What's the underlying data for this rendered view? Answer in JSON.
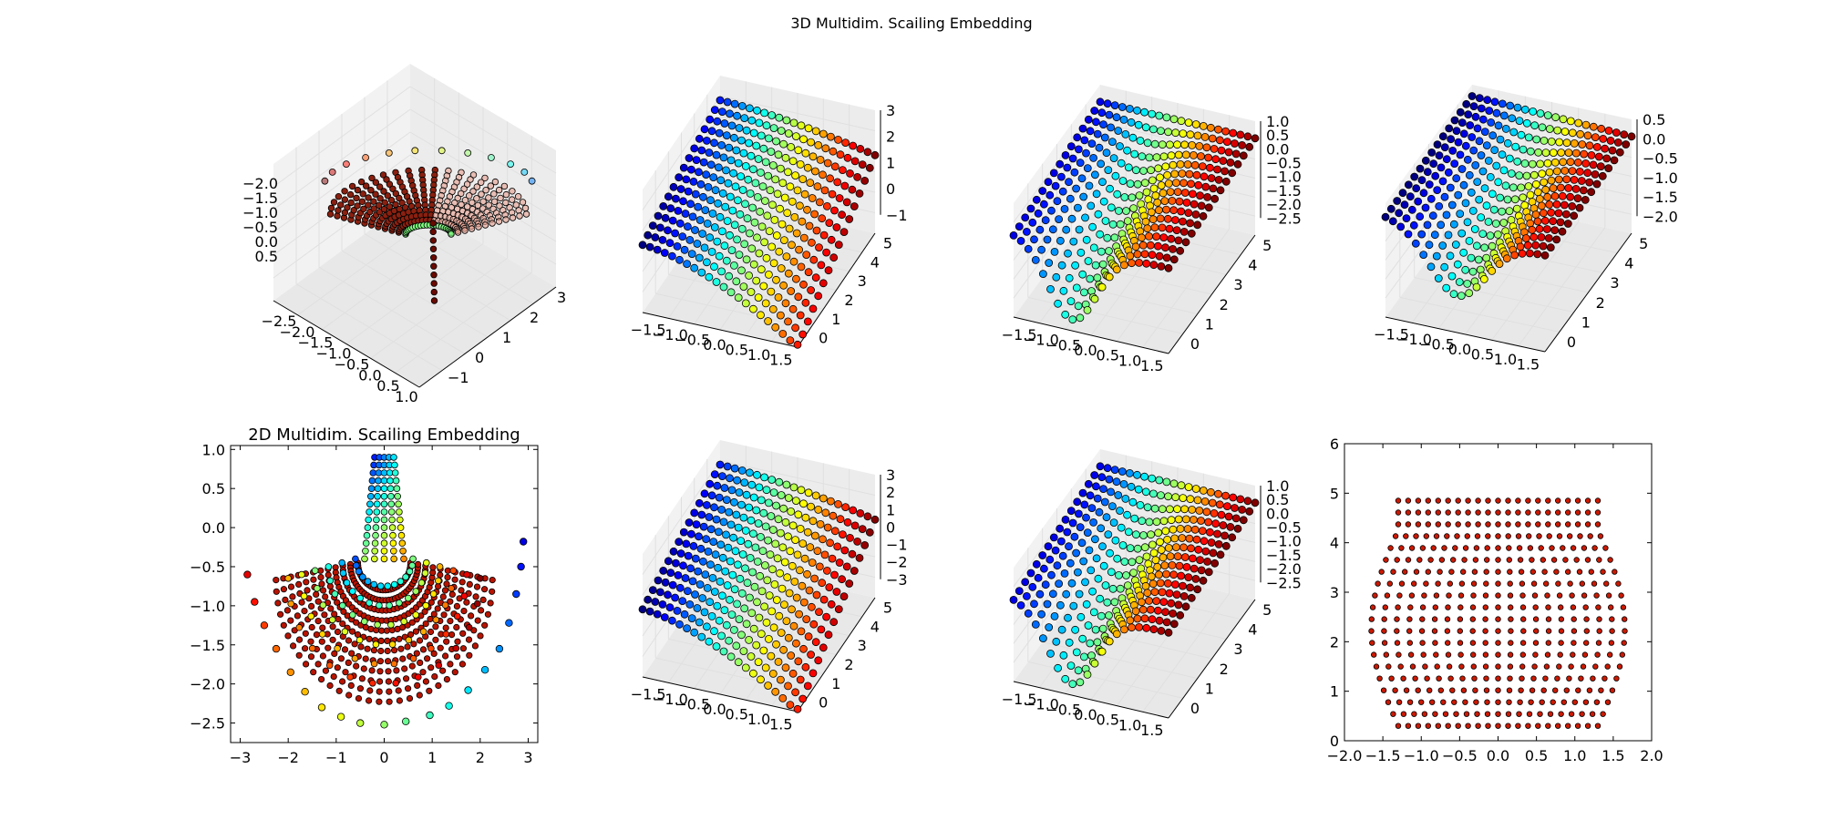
{
  "figure": {
    "suptitle": "3D Multidim. Scailing Embedding"
  },
  "colors": {
    "pane": "#f2f2f2",
    "grid": "#e0e0e0",
    "marker_red": "#cc1a00",
    "colormap": "jet"
  },
  "chart_data": [
    {
      "id": "p3d1",
      "type": "scatter",
      "projection": "3d",
      "title": "",
      "surface": "bowl",
      "x_ticks": [
        "−2.5",
        "−2.0",
        "−1.5",
        "−1.0",
        "−0.5",
        "0.0",
        "0.5",
        "1.0"
      ],
      "y_ticks": [
        "−1",
        "0",
        "1",
        "2",
        "3"
      ],
      "z_ticks": [
        "−2.0",
        "−1.5",
        "−1.0",
        "−0.5",
        "0.0",
        "0.5"
      ],
      "grid": true
    },
    {
      "id": "p3d2",
      "type": "scatter",
      "projection": "3d",
      "title": "",
      "surface": "ridge",
      "x_ticks": [
        "−1.5",
        "−1.0",
        "−0.5",
        "0.0",
        "0.5",
        "1.0",
        "1.5"
      ],
      "y_ticks": [
        "0",
        "1",
        "2",
        "3",
        "4",
        "5"
      ],
      "z_ticks": [
        "3",
        "2",
        "1",
        "0",
        "−1"
      ],
      "grid": true
    },
    {
      "id": "p3d3",
      "type": "scatter",
      "projection": "3d",
      "title": "",
      "surface": "valley",
      "x_ticks": [
        "−1.5",
        "−1.0",
        "−0.5",
        "0.0",
        "0.5",
        "1.0",
        "1.5"
      ],
      "y_ticks": [
        "0",
        "1",
        "2",
        "3",
        "4",
        "5"
      ],
      "z_ticks": [
        "1.0",
        "0.5",
        "0.0",
        "−0.5",
        "−1.0",
        "−1.5",
        "−2.0",
        "−2.5"
      ],
      "grid": true
    },
    {
      "id": "p3d4",
      "type": "scatter",
      "projection": "3d",
      "title": "",
      "surface": "sheet",
      "x_ticks": [
        "−1.5",
        "−1.0",
        "−0.5",
        "0.0",
        "0.5",
        "1.0",
        "1.5"
      ],
      "y_ticks": [
        "0",
        "1",
        "2",
        "3",
        "4",
        "5"
      ],
      "z_ticks": [
        "0.5",
        "0.0",
        "−0.5",
        "−1.0",
        "−1.5",
        "−2.0"
      ],
      "grid": true
    },
    {
      "id": "p2d1",
      "type": "scatter",
      "projection": "2d",
      "title": "2D Multidim. Scailing Embedding",
      "xlim": [
        -3.2,
        3.2
      ],
      "ylim": [
        -2.75,
        1.05
      ],
      "x_ticks": [
        "−3",
        "−2",
        "−1",
        "0",
        "1",
        "2",
        "3"
      ],
      "x_tick_values": [
        -3,
        -2,
        -1,
        0,
        1,
        2,
        3
      ],
      "y_ticks": [
        "1.0",
        "0.5",
        "0.0",
        "−0.5",
        "−1.0",
        "−1.5",
        "−2.0",
        "−2.5"
      ],
      "y_tick_values": [
        1.0,
        0.5,
        0.0,
        -0.5,
        -1.0,
        -1.5,
        -2.0,
        -2.5
      ],
      "arcs": {
        "rows": 12,
        "points_per_row": 34
      },
      "peak": {
        "x": 0.0,
        "y": 0.9
      },
      "outer_ring": [
        {
          "x": -2.85,
          "y": -0.6
        },
        {
          "x": -2.7,
          "y": -0.95
        },
        {
          "x": -2.5,
          "y": -1.25
        },
        {
          "x": -2.25,
          "y": -1.55
        },
        {
          "x": -1.95,
          "y": -1.85
        },
        {
          "x": -1.65,
          "y": -2.1
        },
        {
          "x": -1.3,
          "y": -2.3
        },
        {
          "x": -0.9,
          "y": -2.42
        },
        {
          "x": -0.5,
          "y": -2.5
        },
        {
          "x": 0.0,
          "y": -2.52
        },
        {
          "x": 0.45,
          "y": -2.48
        },
        {
          "x": 0.95,
          "y": -2.4
        },
        {
          "x": 1.35,
          "y": -2.28
        },
        {
          "x": 1.75,
          "y": -2.08
        },
        {
          "x": 2.1,
          "y": -1.82
        },
        {
          "x": 2.4,
          "y": -1.55
        },
        {
          "x": 2.6,
          "y": -1.22
        },
        {
          "x": 2.75,
          "y": -0.85
        },
        {
          "x": 2.85,
          "y": -0.5
        },
        {
          "x": 2.9,
          "y": -0.18
        }
      ],
      "grid": false
    },
    {
      "id": "p3d5",
      "type": "scatter",
      "projection": "3d",
      "title": "",
      "surface": "ridge",
      "x_ticks": [
        "−1.5",
        "−1.0",
        "−0.5",
        "0.0",
        "0.5",
        "1.0",
        "1.5"
      ],
      "y_ticks": [
        "0",
        "1",
        "2",
        "3",
        "4",
        "5"
      ],
      "z_ticks": [
        "3",
        "2",
        "1",
        "0",
        "−1",
        "−2",
        "−3"
      ],
      "grid": true
    },
    {
      "id": "p3d6",
      "type": "scatter",
      "projection": "3d",
      "title": "",
      "surface": "valley",
      "x_ticks": [
        "−1.5",
        "−1.0",
        "−0.5",
        "0.0",
        "0.5",
        "1.0",
        "1.5"
      ],
      "y_ticks": [
        "0",
        "1",
        "2",
        "3",
        "4",
        "5"
      ],
      "z_ticks": [
        "1.0",
        "0.5",
        "0.0",
        "−0.5",
        "−1.0",
        "−1.5",
        "−2.0",
        "−2.5"
      ],
      "grid": true
    },
    {
      "id": "p2d2",
      "type": "scatter",
      "projection": "2d",
      "title": "",
      "xlim": [
        -2.0,
        2.0
      ],
      "ylim": [
        0,
        6
      ],
      "x_ticks": [
        "−2.0",
        "−1.5",
        "−1.0",
        "−0.5",
        "0.0",
        "0.5",
        "1.0",
        "1.5",
        "2.0"
      ],
      "x_tick_values": [
        -2.0,
        -1.5,
        -1.0,
        -0.5,
        0.0,
        0.5,
        1.0,
        1.5,
        2.0
      ],
      "y_ticks": [
        "0",
        "1",
        "2",
        "3",
        "4",
        "5",
        "6"
      ],
      "y_tick_values": [
        0,
        1,
        2,
        3,
        4,
        5,
        6
      ],
      "grid_points": {
        "cols": 21,
        "rows": 20,
        "x_min": -1.3,
        "x_max": 1.3,
        "y_min": 0.3,
        "y_max": 4.85,
        "bulge": 0.35
      },
      "grid": false
    }
  ]
}
